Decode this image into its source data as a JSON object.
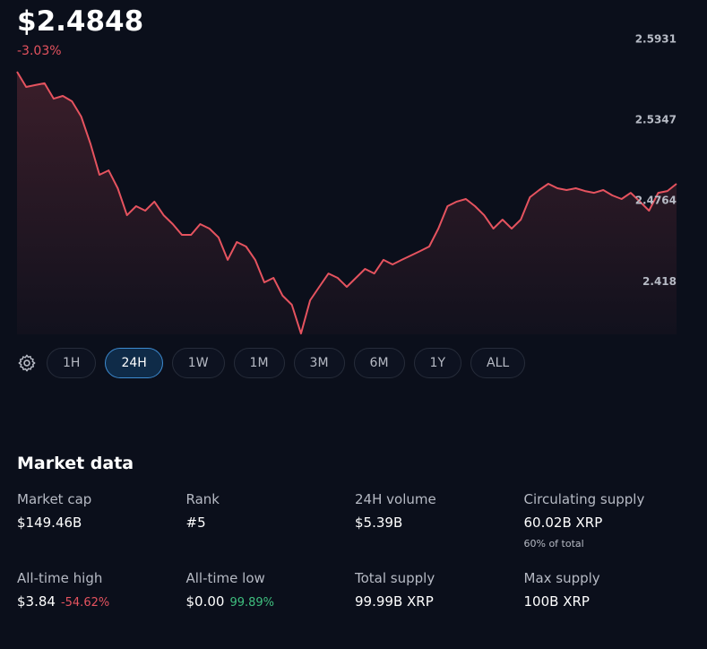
{
  "header": {
    "price": "$2.4848",
    "change": "-3.03%"
  },
  "chart_data": {
    "type": "line",
    "color": "#e5535f",
    "categories": [
      null,
      null,
      null,
      null,
      null,
      null,
      null,
      null,
      null,
      null,
      null,
      null,
      null,
      null,
      null,
      null,
      null,
      null,
      null,
      null,
      null,
      null,
      null,
      null,
      null,
      null,
      null,
      null,
      null,
      null,
      null,
      null,
      null,
      null,
      null,
      null,
      null,
      null,
      null,
      null,
      null,
      null,
      null,
      null,
      null,
      null,
      null,
      null,
      null,
      null,
      null,
      null,
      null,
      null,
      null,
      null,
      null,
      null,
      null,
      null,
      null,
      null,
      null,
      null,
      null,
      null,
      null,
      null,
      null,
      null,
      null,
      null,
      null
    ],
    "values": [
      2.5698,
      2.5588,
      2.5601,
      2.5614,
      2.5503,
      2.5523,
      2.5484,
      2.5374,
      2.518,
      2.4953,
      2.4985,
      2.4856,
      2.4661,
      2.4726,
      2.4694,
      2.4759,
      2.4661,
      2.4597,
      2.4519,
      2.4519,
      2.4597,
      2.4564,
      2.45,
      2.4338,
      2.4467,
      2.4435,
      2.4338,
      2.4176,
      2.4208,
      2.4079,
      2.4014,
      2.3806,
      2.4046,
      2.4143,
      2.424,
      2.4208,
      2.4143,
      2.4208,
      2.4273,
      2.424,
      2.4338,
      2.4305,
      2.4338,
      2.437,
      2.4402,
      2.4435,
      2.4564,
      2.4726,
      2.4759,
      2.4778,
      2.4726,
      2.4661,
      2.4564,
      2.4629,
      2.4564,
      2.4629,
      2.4791,
      2.4843,
      2.4888,
      2.4856,
      2.4843,
      2.4856,
      2.4836,
      2.4823,
      2.4843,
      2.4804,
      2.4778,
      2.4823,
      2.4759,
      2.4694,
      2.4823,
      2.4836,
      2.4888
    ],
    "ylim": [
      2.38,
      2.5931
    ],
    "yticks": [
      2.5931,
      2.5347,
      2.4764,
      2.418
    ]
  },
  "timeframes": {
    "options": [
      "1H",
      "24H",
      "1W",
      "1M",
      "3M",
      "6M",
      "1Y",
      "ALL"
    ],
    "active": 1
  },
  "market": {
    "title": "Market data",
    "items": [
      {
        "label": "Market cap",
        "value": "$149.46B"
      },
      {
        "label": "Rank",
        "value": "#5"
      },
      {
        "label": "24H volume",
        "value": "$5.39B"
      },
      {
        "label": "Circulating supply",
        "value": "60.02B XRP",
        "note": "60% of total"
      },
      {
        "label": "All-time high",
        "value": "$3.84",
        "change": "-54.62%"
      },
      {
        "label": "All-time low",
        "value": "$0.00",
        "change": "99.89%"
      },
      {
        "label": "Total supply",
        "value": "99.99B XRP"
      },
      {
        "label": "Max supply",
        "value": "100B XRP"
      }
    ]
  }
}
